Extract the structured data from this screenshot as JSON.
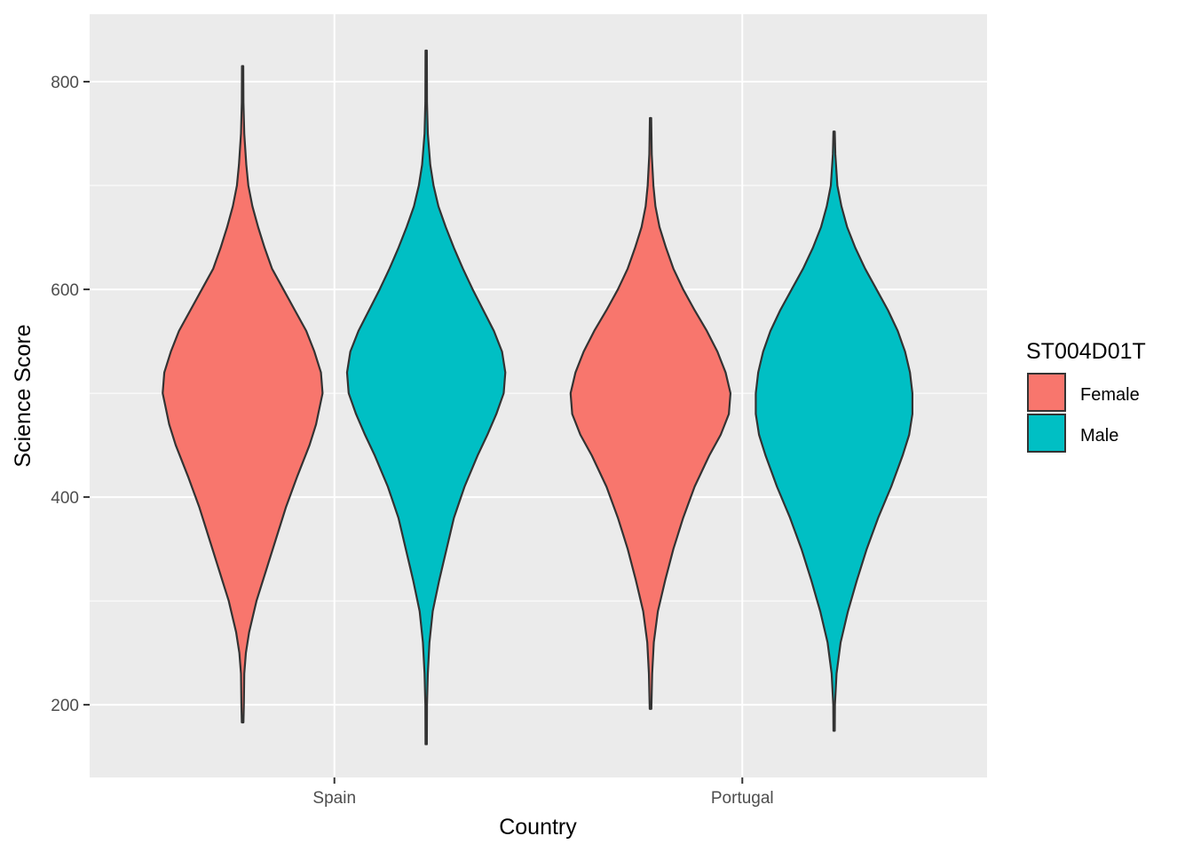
{
  "chart_data": {
    "type": "violin",
    "categories": [
      "Spain",
      "Portugal"
    ],
    "xlabel": "Country",
    "ylabel": "Science Score",
    "ylim": [
      130,
      865
    ],
    "yticks": [
      200,
      400,
      600,
      800
    ],
    "grid": true,
    "legend": {
      "title": "ST004D01T",
      "placement": "right"
    },
    "series": [
      {
        "name": "Female",
        "color": "#F8766D"
      },
      {
        "name": "Male",
        "color": "#00BFC4"
      }
    ],
    "violins": [
      {
        "category": "Spain",
        "group": "Female",
        "min": 183,
        "max": 815,
        "profile": [
          [
            183,
            0.01
          ],
          [
            200,
            0.015
          ],
          [
            230,
            0.02
          ],
          [
            250,
            0.04
          ],
          [
            270,
            0.08
          ],
          [
            300,
            0.17
          ],
          [
            330,
            0.29
          ],
          [
            360,
            0.41
          ],
          [
            390,
            0.53
          ],
          [
            420,
            0.67
          ],
          [
            450,
            0.82
          ],
          [
            470,
            0.9
          ],
          [
            500,
            0.98
          ],
          [
            520,
            0.96
          ],
          [
            540,
            0.88
          ],
          [
            560,
            0.78
          ],
          [
            580,
            0.64
          ],
          [
            600,
            0.5
          ],
          [
            620,
            0.36
          ],
          [
            640,
            0.27
          ],
          [
            660,
            0.19
          ],
          [
            680,
            0.12
          ],
          [
            700,
            0.07
          ],
          [
            720,
            0.045
          ],
          [
            750,
            0.02
          ],
          [
            780,
            0.01
          ],
          [
            815,
            0.008
          ]
        ]
      },
      {
        "category": "Spain",
        "group": "Male",
        "min": 162,
        "max": 830,
        "profile": [
          [
            162,
            0.008
          ],
          [
            200,
            0.01
          ],
          [
            230,
            0.02
          ],
          [
            260,
            0.04
          ],
          [
            290,
            0.08
          ],
          [
            320,
            0.16
          ],
          [
            350,
            0.25
          ],
          [
            380,
            0.34
          ],
          [
            410,
            0.47
          ],
          [
            440,
            0.63
          ],
          [
            460,
            0.75
          ],
          [
            480,
            0.86
          ],
          [
            500,
            0.95
          ],
          [
            520,
            0.97
          ],
          [
            540,
            0.93
          ],
          [
            560,
            0.83
          ],
          [
            580,
            0.7
          ],
          [
            600,
            0.57
          ],
          [
            620,
            0.45
          ],
          [
            640,
            0.34
          ],
          [
            660,
            0.24
          ],
          [
            680,
            0.15
          ],
          [
            700,
            0.09
          ],
          [
            720,
            0.05
          ],
          [
            750,
            0.02
          ],
          [
            780,
            0.01
          ],
          [
            830,
            0.008
          ]
        ]
      },
      {
        "category": "Portugal",
        "group": "Female",
        "min": 196,
        "max": 765,
        "profile": [
          [
            196,
            0.01
          ],
          [
            230,
            0.02
          ],
          [
            260,
            0.04
          ],
          [
            290,
            0.09
          ],
          [
            320,
            0.18
          ],
          [
            350,
            0.28
          ],
          [
            380,
            0.4
          ],
          [
            410,
            0.54
          ],
          [
            440,
            0.72
          ],
          [
            460,
            0.86
          ],
          [
            480,
            0.96
          ],
          [
            500,
            0.98
          ],
          [
            520,
            0.92
          ],
          [
            540,
            0.82
          ],
          [
            560,
            0.69
          ],
          [
            580,
            0.54
          ],
          [
            600,
            0.4
          ],
          [
            620,
            0.28
          ],
          [
            640,
            0.19
          ],
          [
            660,
            0.11
          ],
          [
            680,
            0.06
          ],
          [
            700,
            0.035
          ],
          [
            730,
            0.015
          ],
          [
            765,
            0.008
          ]
        ]
      },
      {
        "category": "Portugal",
        "group": "Male",
        "min": 175,
        "max": 752,
        "profile": [
          [
            175,
            0.008
          ],
          [
            200,
            0.01
          ],
          [
            230,
            0.03
          ],
          [
            260,
            0.08
          ],
          [
            290,
            0.17
          ],
          [
            320,
            0.28
          ],
          [
            350,
            0.4
          ],
          [
            380,
            0.54
          ],
          [
            410,
            0.7
          ],
          [
            440,
            0.84
          ],
          [
            460,
            0.92
          ],
          [
            480,
            0.96
          ],
          [
            500,
            0.96
          ],
          [
            520,
            0.93
          ],
          [
            540,
            0.87
          ],
          [
            560,
            0.78
          ],
          [
            580,
            0.66
          ],
          [
            600,
            0.52
          ],
          [
            620,
            0.38
          ],
          [
            640,
            0.26
          ],
          [
            660,
            0.16
          ],
          [
            680,
            0.09
          ],
          [
            700,
            0.04
          ],
          [
            730,
            0.015
          ],
          [
            752,
            0.008
          ]
        ]
      }
    ]
  }
}
